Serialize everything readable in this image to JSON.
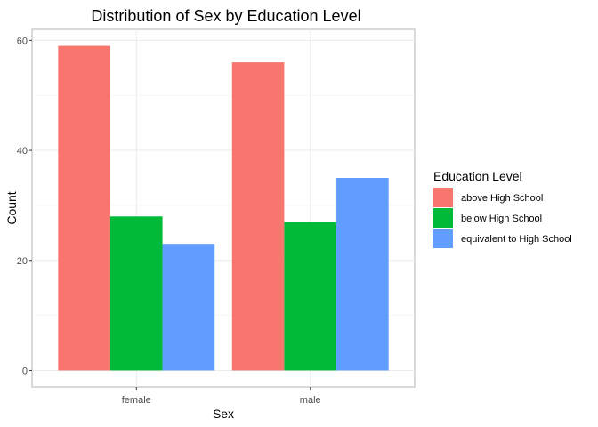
{
  "chart_data": {
    "type": "bar",
    "title": "Distribution of Sex by Education Level",
    "xlabel": "Sex",
    "ylabel": "Count",
    "categories": [
      "female",
      "male"
    ],
    "series": [
      {
        "name": "above High School",
        "values": [
          59,
          56
        ],
        "color": "#F8766D"
      },
      {
        "name": "below High School",
        "values": [
          28,
          27
        ],
        "color": "#00BA38"
      },
      {
        "name": "equivalent to High School",
        "values": [
          23,
          35
        ],
        "color": "#619CFF"
      }
    ],
    "yticks": [
      0,
      20,
      40,
      60
    ],
    "ylim": [
      -3,
      62
    ],
    "legend": {
      "title": "Education Level",
      "position": "right"
    },
    "grid": true
  }
}
